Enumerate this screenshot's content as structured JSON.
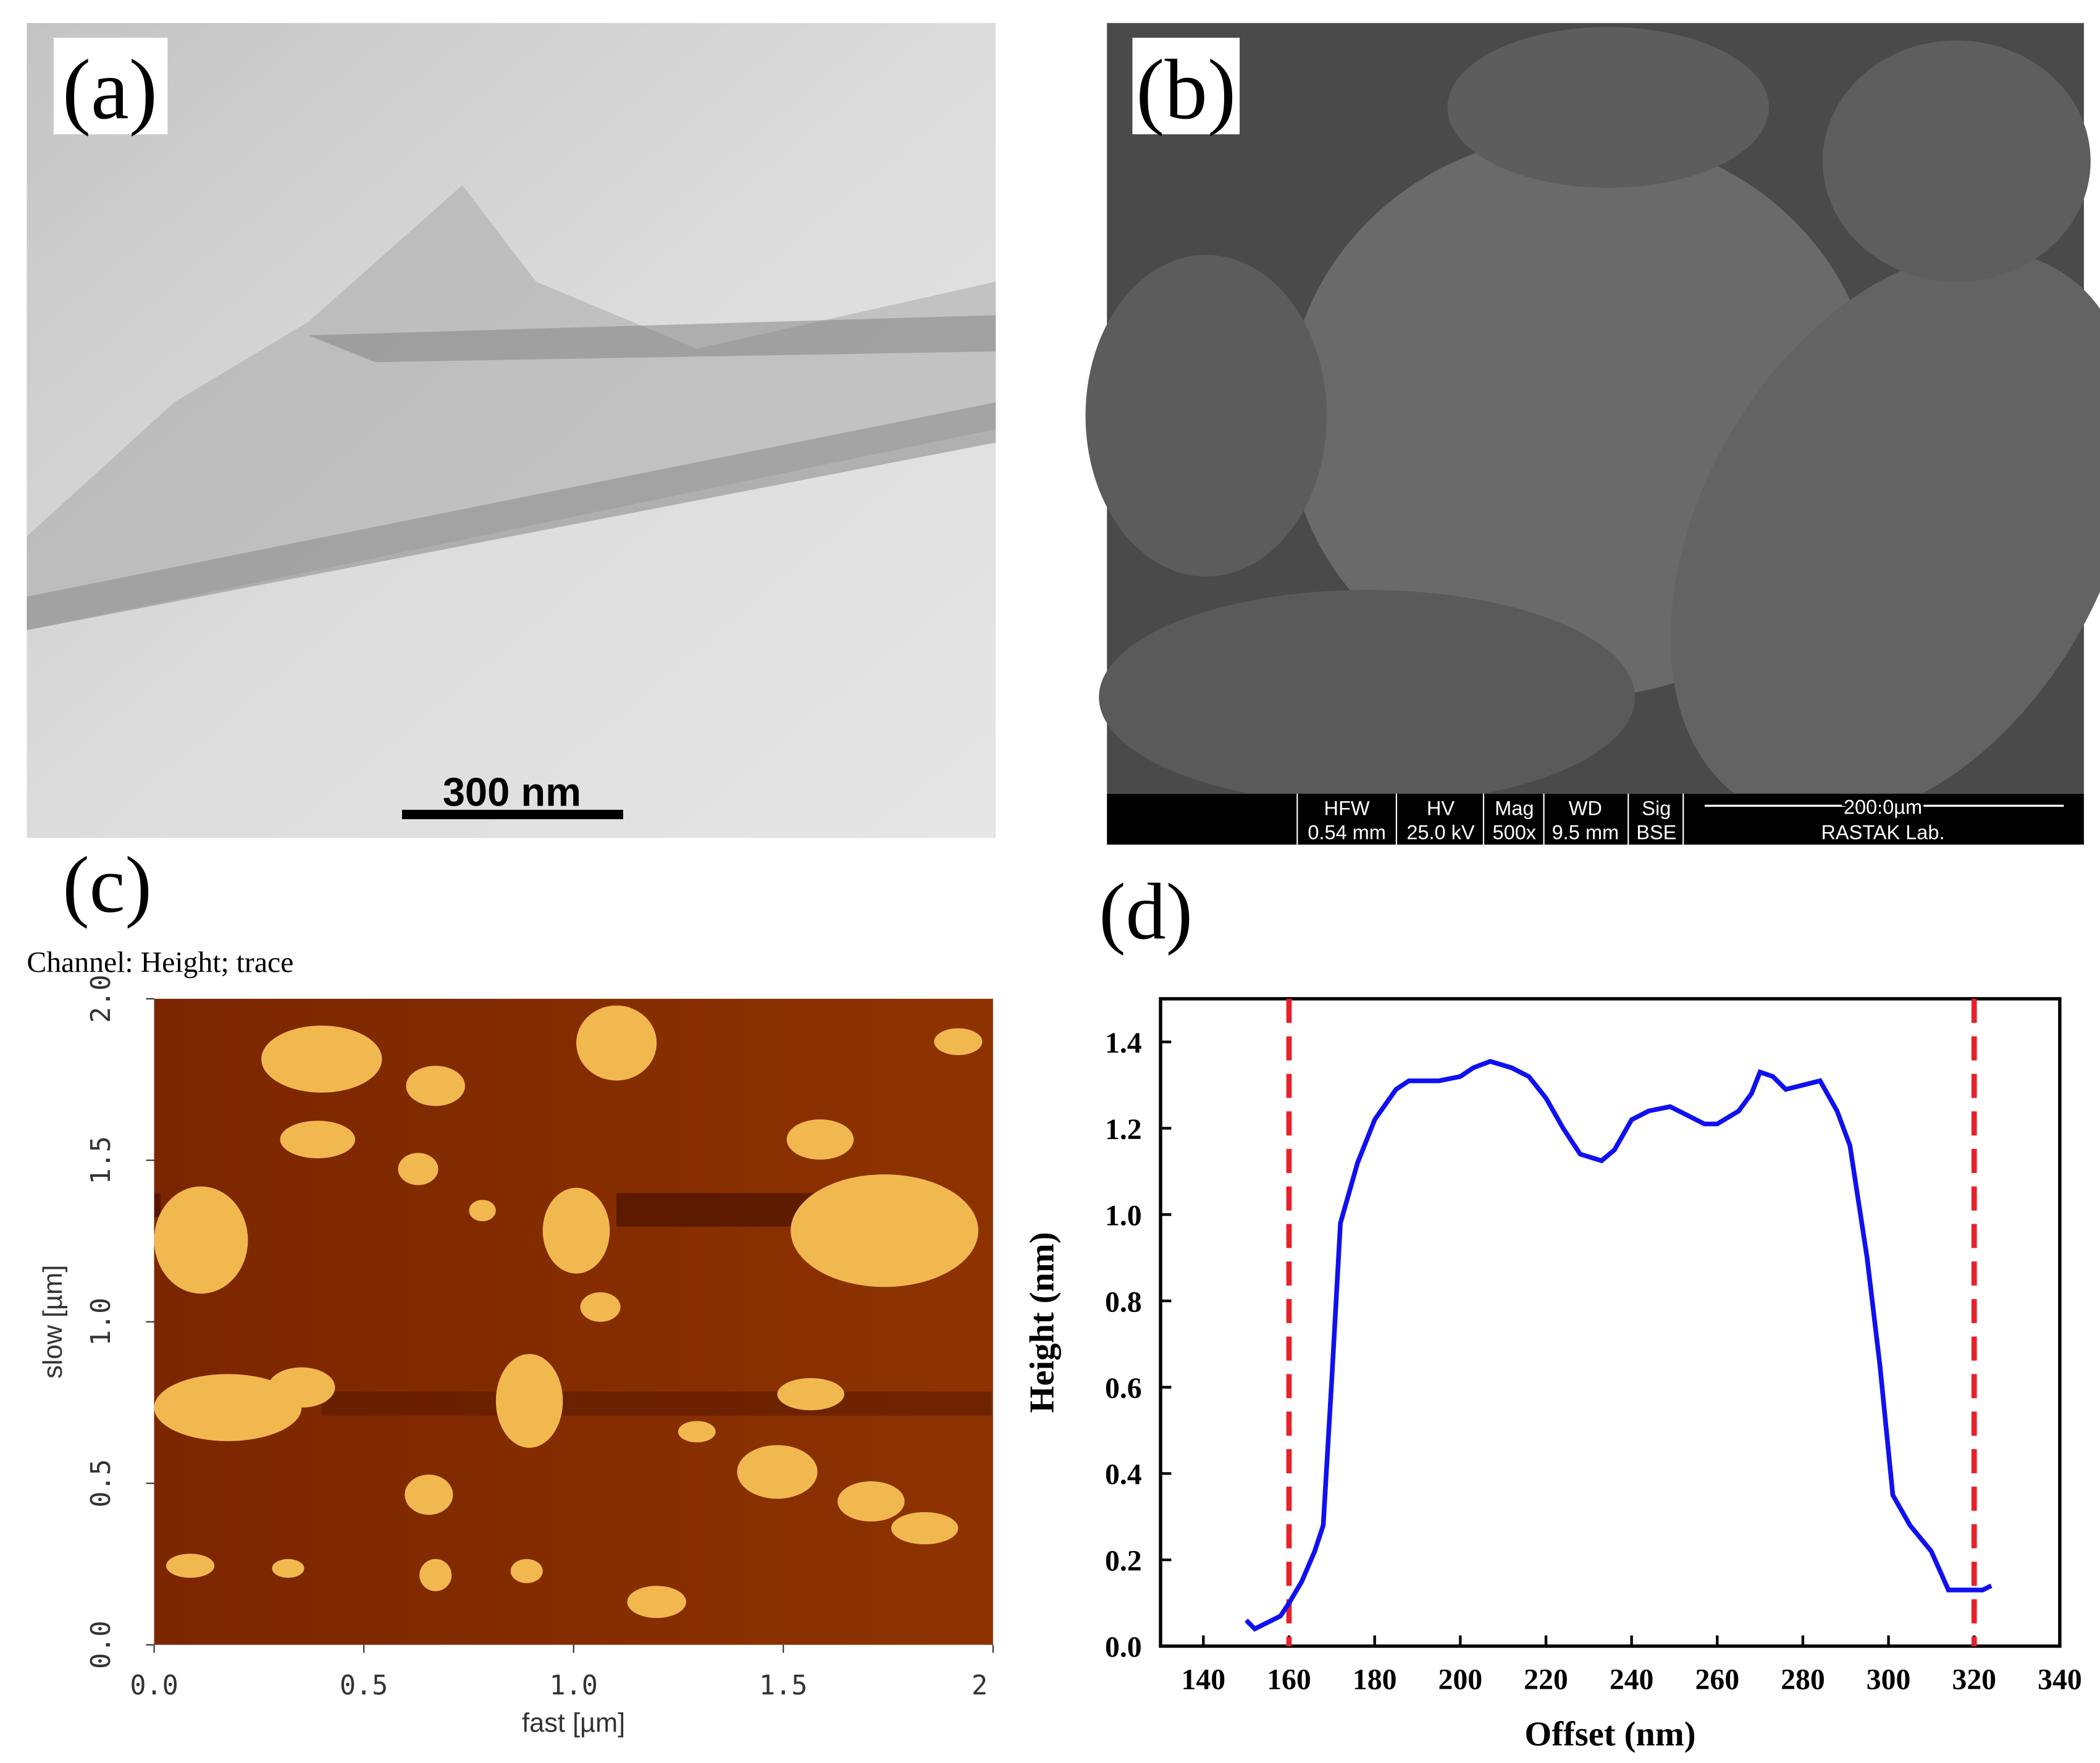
{
  "panels": {
    "a": {
      "label": "(a)",
      "scale_bar": "300 nm"
    },
    "b": {
      "label": "(b)",
      "info_bar": {
        "headers": [
          "HFW",
          "HV",
          "Mag",
          "WD",
          "Sig"
        ],
        "values": [
          "0.54 mm",
          "25.0 kV",
          "500x",
          "9.5 mm",
          "BSE"
        ],
        "scale": "200.0µm",
        "lab": "RASTAK Lab."
      }
    },
    "c": {
      "label": "(c)"
    },
    "d": {
      "label": "(d)"
    }
  },
  "chart_data": [
    {
      "type": "image",
      "title": "Channel: Height; trace",
      "x_label": "fast [µm]",
      "y_label": "slow [µm]",
      "xlim": [
        0,
        2
      ],
      "ylim": [
        0,
        2
      ],
      "xticks": [
        {
          "value": 0,
          "label": "0.0"
        },
        0.5,
        {
          "value": 1,
          "label": "1.0"
        },
        1.5,
        2
      ],
      "yticks": [
        {
          "value": 0,
          "label": "0.0"
        },
        0.5,
        {
          "value": 1,
          "label": "1.0"
        },
        1.5,
        {
          "value": 2,
          "label": "2.0"
        }
      ]
    },
    {
      "type": "line",
      "x_label": "Offset (nm)",
      "y_label": "Height (nm)",
      "color": "#1010f0",
      "x": [
        150,
        152,
        156,
        158,
        160,
        163,
        166,
        168,
        170,
        172,
        176,
        180,
        185,
        188,
        195,
        200,
        203,
        207,
        212,
        216,
        220,
        224,
        228,
        233,
        236,
        240,
        244,
        249,
        253,
        257,
        260,
        265,
        268,
        270,
        273,
        276,
        280,
        284,
        288,
        291,
        295,
        298,
        301,
        305,
        310,
        314,
        319,
        322,
        324
      ],
      "values": [
        0.06,
        0.04,
        0.06,
        0.07,
        0.1,
        0.15,
        0.22,
        0.28,
        0.62,
        0.98,
        1.12,
        1.22,
        1.29,
        1.31,
        1.31,
        1.32,
        1.34,
        1.355,
        1.34,
        1.32,
        1.27,
        1.2,
        1.14,
        1.125,
        1.15,
        1.22,
        1.24,
        1.25,
        1.23,
        1.21,
        1.21,
        1.24,
        1.28,
        1.33,
        1.32,
        1.29,
        1.3,
        1.31,
        1.24,
        1.16,
        0.9,
        0.65,
        0.35,
        0.28,
        0.22,
        0.13,
        0.13,
        0.13,
        0.14
      ],
      "xlim": [
        130,
        340
      ],
      "ylim": [
        0,
        1.5
      ],
      "xticks": [
        140,
        160,
        180,
        200,
        220,
        240,
        260,
        280,
        300,
        320,
        340
      ],
      "yticks": [
        {
          "value": 0,
          "label": "0.0"
        },
        0.2,
        0.4,
        0.6,
        0.8,
        {
          "value": 1,
          "label": "1.0"
        },
        1.2,
        1.4
      ],
      "reference_lines": {
        "x": [
          160,
          320
        ],
        "color": "#e8202a"
      }
    }
  ]
}
